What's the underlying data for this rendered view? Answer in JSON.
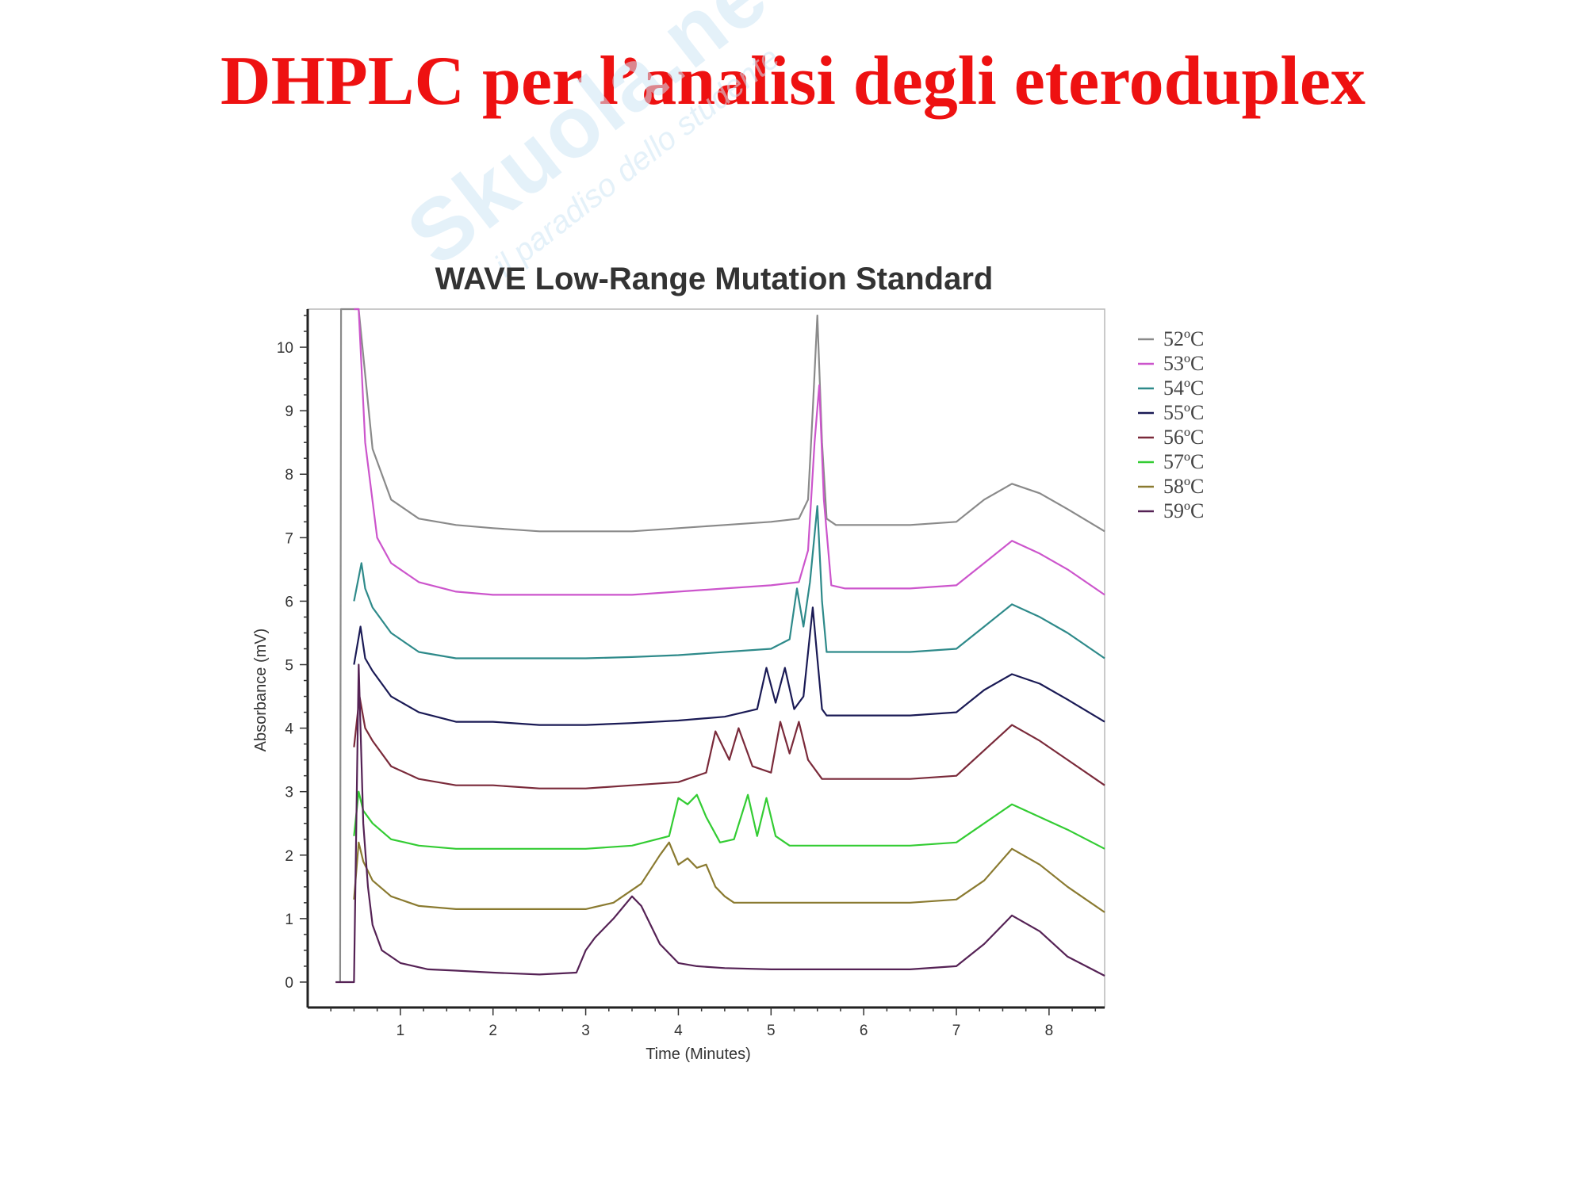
{
  "slide": {
    "title": "DHPLC per l’analisi degli eteroduplex",
    "watermark_main": "Skuola.net",
    "watermark_sub": "il paradiso dello studente"
  },
  "chart_data": {
    "type": "line",
    "title": "WAVE Low-Range Mutation Standard",
    "xlabel": "Time (Minutes)",
    "ylabel": "Absorbance (mV)",
    "xlim": [
      0,
      8.6
    ],
    "ylim": [
      -0.4,
      10.6
    ],
    "xticks": [
      1,
      2,
      3,
      4,
      5,
      6,
      7,
      8
    ],
    "yticks": [
      0,
      1,
      2,
      3,
      4,
      5,
      6,
      7,
      8,
      9,
      10
    ],
    "grid": false,
    "legend_position": "right",
    "series": [
      {
        "name": "52ºC",
        "color": "#8a8a8a",
        "x": [
          0.35,
          0.36,
          0.42,
          0.47,
          0.5,
          0.55,
          0.7,
          0.9,
          1.2,
          1.6,
          2.0,
          2.5,
          3.0,
          3.5,
          4.0,
          4.5,
          5.0,
          5.3,
          5.4,
          5.45,
          5.5,
          5.55,
          5.6,
          5.7,
          6.0,
          6.5,
          7.0,
          7.3,
          7.6,
          7.9,
          8.2,
          8.6
        ],
        "y": [
          0,
          10.6,
          10.6,
          10.6,
          10.6,
          10.6,
          8.4,
          7.6,
          7.3,
          7.2,
          7.15,
          7.1,
          7.1,
          7.1,
          7.15,
          7.2,
          7.25,
          7.3,
          7.6,
          9.0,
          10.5,
          8.5,
          7.3,
          7.2,
          7.2,
          7.2,
          7.25,
          7.6,
          7.85,
          7.7,
          7.45,
          7.1
        ]
      },
      {
        "name": "53ºC",
        "color": "#cc55cc",
        "x": [
          0.5,
          0.55,
          0.62,
          0.75,
          0.9,
          1.2,
          1.6,
          2.0,
          2.5,
          3.0,
          3.5,
          4.0,
          4.5,
          5.0,
          5.3,
          5.4,
          5.47,
          5.52,
          5.57,
          5.65,
          5.8,
          6.0,
          6.5,
          7.0,
          7.3,
          7.6,
          7.9,
          8.2,
          8.6
        ],
        "y": [
          10.6,
          10.6,
          8.5,
          7.0,
          6.6,
          6.3,
          6.15,
          6.1,
          6.1,
          6.1,
          6.1,
          6.15,
          6.2,
          6.25,
          6.3,
          6.8,
          8.5,
          9.4,
          7.6,
          6.25,
          6.2,
          6.2,
          6.2,
          6.25,
          6.6,
          6.95,
          6.75,
          6.5,
          6.1
        ]
      },
      {
        "name": "54ºC",
        "color": "#2e8a8a",
        "x": [
          0.5,
          0.58,
          0.62,
          0.7,
          0.9,
          1.2,
          1.6,
          2.0,
          2.5,
          3.0,
          3.5,
          4.0,
          4.5,
          5.0,
          5.2,
          5.28,
          5.35,
          5.42,
          5.5,
          5.55,
          5.6,
          5.7,
          6.0,
          6.5,
          7.0,
          7.3,
          7.6,
          7.9,
          8.2,
          8.6
        ],
        "y": [
          6.0,
          6.6,
          6.2,
          5.9,
          5.5,
          5.2,
          5.1,
          5.1,
          5.1,
          5.1,
          5.12,
          5.15,
          5.2,
          5.25,
          5.4,
          6.2,
          5.6,
          6.3,
          7.5,
          6.0,
          5.2,
          5.2,
          5.2,
          5.2,
          5.25,
          5.6,
          5.95,
          5.75,
          5.5,
          5.1
        ]
      },
      {
        "name": "55ºC",
        "color": "#1a1a55",
        "x": [
          0.5,
          0.57,
          0.62,
          0.7,
          0.9,
          1.2,
          1.6,
          2.0,
          2.5,
          3.0,
          3.5,
          4.0,
          4.5,
          4.85,
          4.95,
          5.05,
          5.15,
          5.25,
          5.35,
          5.45,
          5.5,
          5.55,
          5.6,
          5.7,
          6.0,
          6.5,
          7.0,
          7.3,
          7.6,
          7.9,
          8.2,
          8.6
        ],
        "y": [
          5.0,
          5.6,
          5.1,
          4.9,
          4.5,
          4.25,
          4.1,
          4.1,
          4.05,
          4.05,
          4.08,
          4.12,
          4.18,
          4.3,
          4.95,
          4.4,
          4.95,
          4.3,
          4.5,
          5.9,
          5.1,
          4.3,
          4.2,
          4.2,
          4.2,
          4.2,
          4.25,
          4.6,
          4.85,
          4.7,
          4.45,
          4.1
        ]
      },
      {
        "name": "56ºC",
        "color": "#7a2a3a",
        "x": [
          0.5,
          0.56,
          0.62,
          0.7,
          0.9,
          1.2,
          1.6,
          2.0,
          2.5,
          3.0,
          3.5,
          4.0,
          4.3,
          4.4,
          4.55,
          4.65,
          4.8,
          5.0,
          5.1,
          5.2,
          5.3,
          5.4,
          5.55,
          5.7,
          6.0,
          6.5,
          7.0,
          7.3,
          7.6,
          7.9,
          8.2,
          8.6
        ],
        "y": [
          3.7,
          4.5,
          4.0,
          3.8,
          3.4,
          3.2,
          3.1,
          3.1,
          3.05,
          3.05,
          3.1,
          3.15,
          3.3,
          3.95,
          3.5,
          4.0,
          3.4,
          3.3,
          4.1,
          3.6,
          4.1,
          3.5,
          3.2,
          3.2,
          3.2,
          3.2,
          3.25,
          3.65,
          4.05,
          3.8,
          3.5,
          3.1
        ]
      },
      {
        "name": "57ºC",
        "color": "#33cc33",
        "x": [
          0.5,
          0.55,
          0.6,
          0.7,
          0.9,
          1.2,
          1.6,
          2.0,
          2.5,
          3.0,
          3.5,
          3.9,
          4.0,
          4.1,
          4.2,
          4.3,
          4.45,
          4.6,
          4.75,
          4.85,
          4.95,
          5.05,
          5.2,
          5.5,
          6.0,
          6.5,
          7.0,
          7.3,
          7.6,
          7.9,
          8.2,
          8.6
        ],
        "y": [
          2.3,
          3.0,
          2.7,
          2.5,
          2.25,
          2.15,
          2.1,
          2.1,
          2.1,
          2.1,
          2.15,
          2.3,
          2.9,
          2.8,
          2.95,
          2.6,
          2.2,
          2.25,
          2.95,
          2.3,
          2.9,
          2.3,
          2.15,
          2.15,
          2.15,
          2.15,
          2.2,
          2.5,
          2.8,
          2.6,
          2.4,
          2.1
        ]
      },
      {
        "name": "58ºC",
        "color": "#8a7a30",
        "x": [
          0.5,
          0.55,
          0.6,
          0.7,
          0.9,
          1.2,
          1.6,
          2.0,
          2.5,
          3.0,
          3.3,
          3.6,
          3.8,
          3.9,
          4.0,
          4.1,
          4.2,
          4.3,
          4.4,
          4.5,
          4.6,
          5.0,
          5.5,
          6.0,
          6.5,
          7.0,
          7.3,
          7.6,
          7.9,
          8.2,
          8.6
        ],
        "y": [
          1.3,
          2.2,
          1.9,
          1.6,
          1.35,
          1.2,
          1.15,
          1.15,
          1.15,
          1.15,
          1.25,
          1.55,
          2.0,
          2.2,
          1.85,
          1.95,
          1.8,
          1.85,
          1.5,
          1.35,
          1.25,
          1.25,
          1.25,
          1.25,
          1.25,
          1.3,
          1.6,
          2.1,
          1.85,
          1.5,
          1.1
        ]
      },
      {
        "name": "59ºC",
        "color": "#552255",
        "x": [
          0.3,
          0.5,
          0.55,
          0.6,
          0.65,
          0.7,
          0.8,
          1.0,
          1.3,
          1.6,
          2.0,
          2.5,
          2.9,
          3.0,
          3.1,
          3.3,
          3.5,
          3.6,
          3.7,
          3.8,
          4.0,
          4.2,
          4.5,
          5.0,
          5.5,
          6.0,
          6.5,
          7.0,
          7.3,
          7.6,
          7.9,
          8.2,
          8.6
        ],
        "y": [
          0,
          0,
          5.0,
          2.5,
          1.5,
          0.9,
          0.5,
          0.3,
          0.2,
          0.18,
          0.15,
          0.12,
          0.15,
          0.5,
          0.7,
          1.0,
          1.35,
          1.2,
          0.9,
          0.6,
          0.3,
          0.25,
          0.22,
          0.2,
          0.2,
          0.2,
          0.2,
          0.25,
          0.6,
          1.05,
          0.8,
          0.4,
          0.1
        ]
      }
    ]
  }
}
